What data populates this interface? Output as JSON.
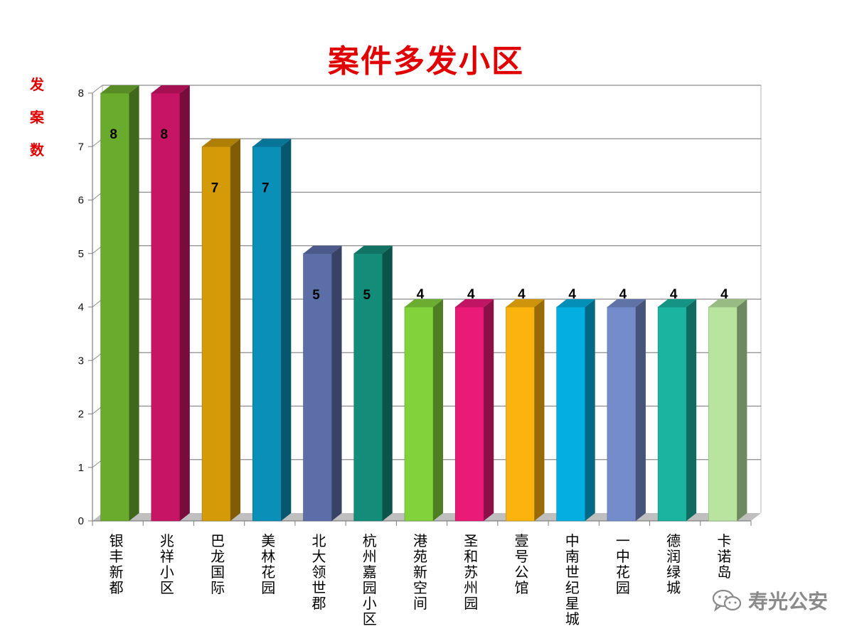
{
  "chart_data": {
    "type": "bar",
    "title": "案件多发小区",
    "ylabel": "发案数",
    "xlabel": "",
    "ylim": [
      0,
      8
    ],
    "yticks": [
      0,
      1,
      2,
      3,
      4,
      5,
      6,
      7,
      8
    ],
    "grid": true,
    "legend": "none",
    "categories": [
      "银丰新都",
      "兆祥小区",
      "巴龙国际",
      "美林花园",
      "北大领世郡",
      "杭州嘉园小区",
      "港苑新空间",
      "圣和苏州园",
      "壹号公馆",
      "中南世纪星城",
      "一中花园",
      "德润绿城",
      "卡诺岛"
    ],
    "values": [
      8,
      8,
      7,
      7,
      5,
      5,
      4,
      4,
      4,
      4,
      4,
      4,
      4
    ],
    "colors": [
      "#6aab2e",
      "#c81464",
      "#d49a08",
      "#0a8fb8",
      "#5b6ea8",
      "#148c7a",
      "#82d23c",
      "#ea1a78",
      "#fbb40e",
      "#04aee0",
      "#748ccc",
      "#1ab4a0",
      "#b8e4a0"
    ]
  },
  "watermark": {
    "text": "寿光公安",
    "icon": "wechat-icon"
  }
}
